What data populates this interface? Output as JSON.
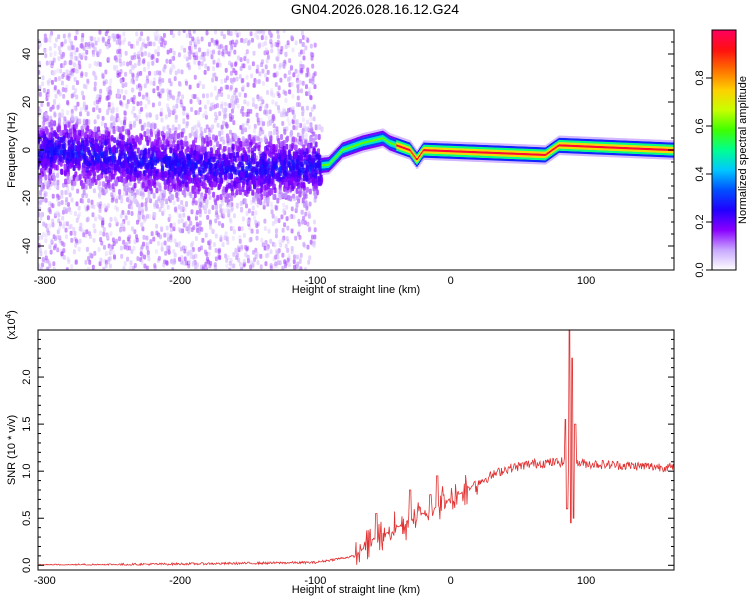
{
  "title": "GN04.2026.028.16.12.G24",
  "chart_data": [
    {
      "type": "heatmap",
      "xlabel": "Height of straight line (km)",
      "ylabel": "Frequency (Hz)",
      "xlim": [
        -305,
        165
      ],
      "ylim": [
        -50,
        50
      ],
      "xticks": [
        -300,
        -200,
        -100,
        0,
        100
      ],
      "yticks": [
        -40,
        -20,
        0,
        20,
        40
      ],
      "colorbar": {
        "label": "Normalized spectral amplitude",
        "range": [
          0,
          1
        ],
        "ticks": [
          0.0,
          0.2,
          0.4,
          0.6,
          0.8
        ],
        "tick_labels": [
          "0.0",
          "0.2",
          "0.4",
          "0.6",
          "0.8"
        ],
        "colors": [
          "#ffffff",
          "#c9a8ff",
          "#8a00ff",
          "#2000ff",
          "#0050ff",
          "#00c8ff",
          "#00ff90",
          "#40ff00",
          "#c8ff00",
          "#ffd000",
          "#ff7000",
          "#ff1010",
          "#ff0060"
        ]
      },
      "ridge": [
        {
          "x": -300,
          "f": 0
        },
        {
          "x": -170,
          "f": -8
        },
        {
          "x": -160,
          "f": -8
        },
        {
          "x": -105,
          "f": -7
        },
        {
          "x": -90,
          "f": -6
        },
        {
          "x": -80,
          "f": 0
        },
        {
          "x": -65,
          "f": 3
        },
        {
          "x": -50,
          "f": 5
        },
        {
          "x": -45,
          "f": 3
        },
        {
          "x": -30,
          "f": 0
        },
        {
          "x": -25,
          "f": -4
        },
        {
          "x": -20,
          "f": 0
        },
        {
          "x": 70,
          "f": -2
        },
        {
          "x": 80,
          "f": 2
        },
        {
          "x": 165,
          "f": 0
        }
      ]
    },
    {
      "type": "line",
      "xlabel": "Height of straight line (km)",
      "ylabel": "SNR (10 * v/v)",
      "multiplier": "(x10",
      "multiplier_exp": "4",
      "xlim": [
        -305,
        165
      ],
      "ylim": [
        -0.05,
        2.5
      ],
      "xticks": [
        -300,
        -200,
        -100,
        0,
        100
      ],
      "yticks": [
        0.0,
        0.5,
        1.0,
        1.5,
        2.0
      ],
      "ytick_labels": [
        "0.0",
        "0.5",
        "1.0",
        "1.5",
        "2.0"
      ],
      "color": "#e03030",
      "envelope": [
        {
          "x": -305,
          "y": 0.0
        },
        {
          "x": -160,
          "y": 0.02
        },
        {
          "x": -100,
          "y": 0.03
        },
        {
          "x": -70,
          "y": 0.1
        },
        {
          "x": -60,
          "y": 0.25
        },
        {
          "x": -40,
          "y": 0.4
        },
        {
          "x": -20,
          "y": 0.55
        },
        {
          "x": 0,
          "y": 0.7
        },
        {
          "x": 20,
          "y": 0.88
        },
        {
          "x": 40,
          "y": 1.02
        },
        {
          "x": 60,
          "y": 1.08
        },
        {
          "x": 85,
          "y": 1.1
        },
        {
          "x": 100,
          "y": 1.08
        },
        {
          "x": 130,
          "y": 1.06
        },
        {
          "x": 165,
          "y": 1.04
        }
      ],
      "spikes": [
        {
          "x": -55,
          "y": 0.55
        },
        {
          "x": -30,
          "y": 0.8
        },
        {
          "x": -10,
          "y": 0.95
        },
        {
          "x": -15,
          "y": 0.75
        },
        {
          "x": 85,
          "y": 1.55
        },
        {
          "x": 86,
          "y": 0.6
        },
        {
          "x": 88,
          "y": 2.5
        },
        {
          "x": 89,
          "y": 0.45
        },
        {
          "x": 90,
          "y": 2.2
        },
        {
          "x": 91,
          "y": 0.5
        },
        {
          "x": 92,
          "y": 1.5
        }
      ]
    }
  ]
}
